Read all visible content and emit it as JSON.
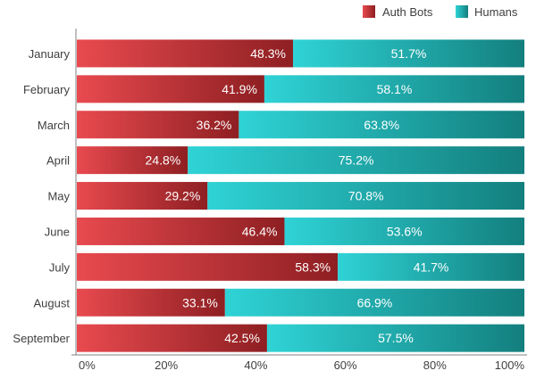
{
  "chart_data": {
    "type": "bar",
    "orientation": "horizontal",
    "stacked": true,
    "categories": [
      "January",
      "February",
      "March",
      "April",
      "May",
      "June",
      "July",
      "August",
      "September"
    ],
    "series": [
      {
        "name": "Auth Bots",
        "values": [
          48.3,
          41.9,
          36.2,
          24.8,
          29.2,
          46.4,
          58.3,
          33.1,
          42.5
        ],
        "labels": [
          "48.3%",
          "41.9%",
          "36.2%",
          "24.8%",
          "29.2%",
          "46.4%",
          "58.3%",
          "33.1%",
          "42.5%"
        ]
      },
      {
        "name": "Humans",
        "values": [
          51.7,
          58.1,
          63.8,
          75.2,
          70.8,
          53.6,
          41.7,
          66.9,
          57.5
        ],
        "labels": [
          "51.7%",
          "58.1%",
          "63.8%",
          "75.2%",
          "70.8%",
          "53.6%",
          "41.7%",
          "66.9%",
          "57.5%"
        ]
      }
    ],
    "xticks": [
      "0%",
      "20%",
      "40%",
      "60%",
      "80%",
      "100%"
    ],
    "xlim": [
      0,
      100
    ],
    "legend_position": "top-right",
    "grid": false,
    "colors": {
      "auth_bots_light": "#e84a4f",
      "auth_bots_dark": "#8e1f22",
      "humans_light": "#2fd3d6",
      "humans_dark": "#137f7e"
    }
  }
}
